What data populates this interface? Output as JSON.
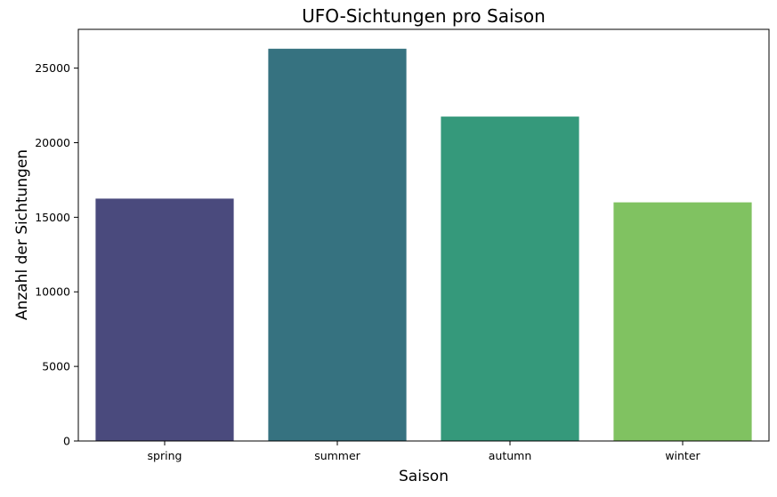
{
  "chart_data": {
    "type": "bar",
    "title": "UFO-Sichtungen pro Saison",
    "xlabel": "Saison",
    "ylabel": "Anzahl der Sichtungen",
    "categories": [
      "spring",
      "summer",
      "autumn",
      "winter"
    ],
    "values": [
      16250,
      26300,
      21750,
      16000
    ],
    "colors": [
      "#4a4a7d",
      "#367280",
      "#35997b",
      "#80c261"
    ],
    "ylim": [
      0,
      27600
    ],
    "yticks": [
      0,
      5000,
      10000,
      15000,
      20000,
      25000
    ],
    "grid": false,
    "legend": "none"
  }
}
